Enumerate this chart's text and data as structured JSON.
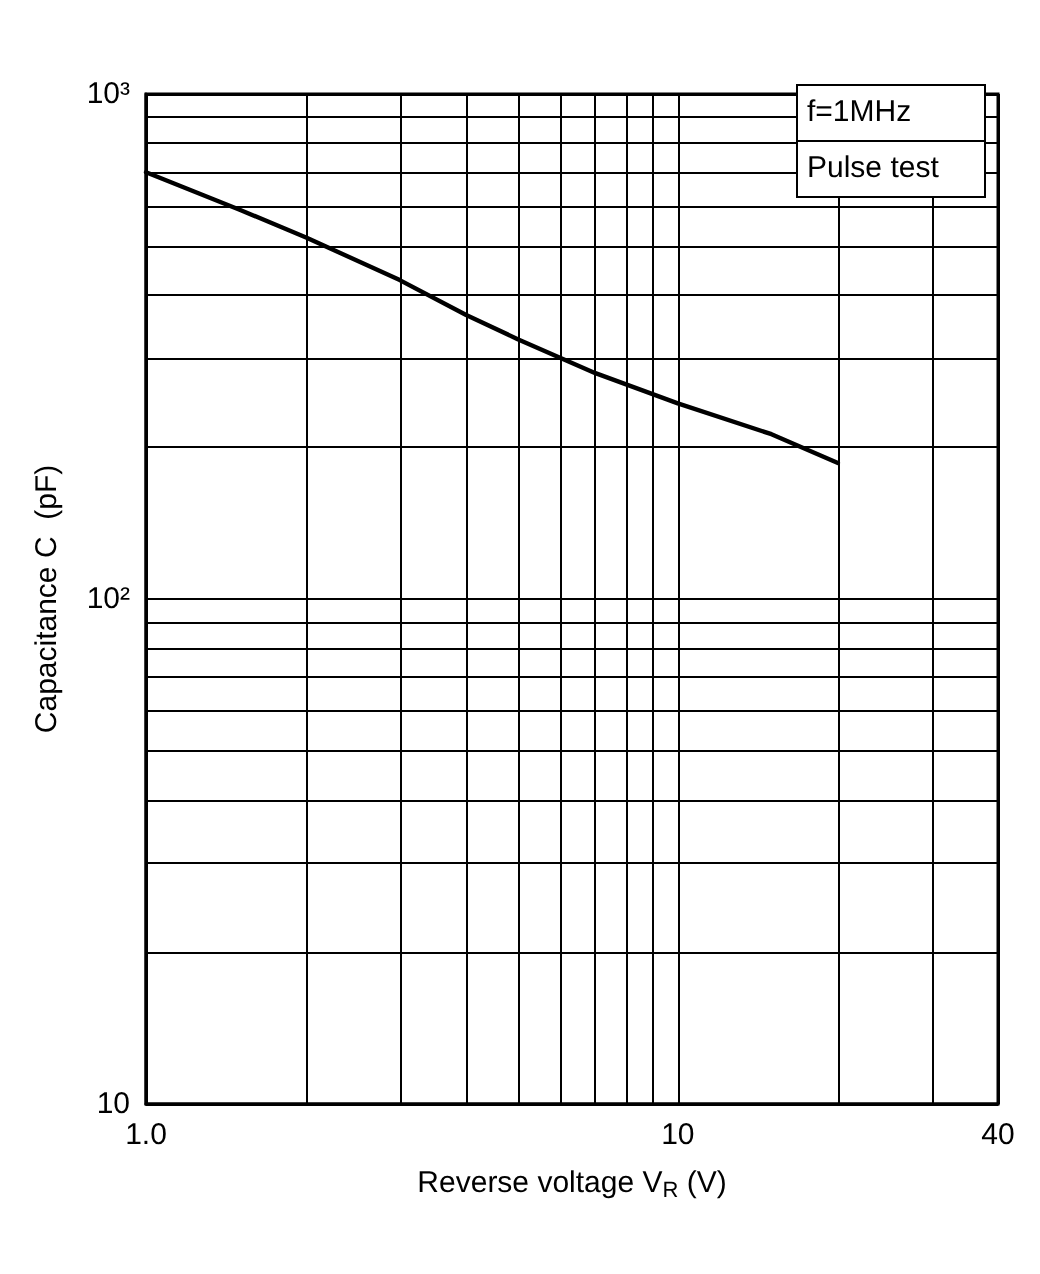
{
  "chart_data": {
    "type": "line",
    "xlabel": "Reverse voltage V$_{R}$ (V)",
    "ylabel": "Capacitance C  (pF)",
    "annotations": [
      "f=1MHz",
      "Pulse test"
    ],
    "x": [
      1,
      1.5,
      2,
      3,
      4,
      5,
      7,
      10,
      15,
      20
    ],
    "series": [
      {
        "color": "#000000",
        "values": [
          700,
          590,
          520,
          428,
          365,
          327,
          280,
          244,
          212,
          186
        ]
      }
    ],
    "log": "xy",
    "grid": true,
    "marker": "none",
    "line_style": "solid",
    "xlim": [
      1,
      40
    ],
    "ylim": [
      10,
      1000
    ],
    "xticks": [
      {
        "value": 1,
        "label": "1.0"
      },
      {
        "value": 2,
        "label": null
      },
      {
        "value": 3,
        "label": null
      },
      {
        "value": 4,
        "label": null
      },
      {
        "value": 5,
        "label": null
      },
      {
        "value": 6,
        "label": null
      },
      {
        "value": 7,
        "label": null
      },
      {
        "value": 8,
        "label": null
      },
      {
        "value": 9,
        "label": null
      },
      10,
      {
        "value": 20,
        "label": null
      },
      {
        "value": 30,
        "label": null
      },
      40
    ],
    "yticks": [
      10,
      {
        "value": 20,
        "label": null
      },
      {
        "value": 30,
        "label": null
      },
      {
        "value": 40,
        "label": null
      },
      {
        "value": 50,
        "label": null
      },
      {
        "value": 60,
        "label": null
      },
      {
        "value": 70,
        "label": null
      },
      {
        "value": 80,
        "label": null
      },
      {
        "value": 90,
        "label": null
      },
      {
        "value": 100,
        "label": "10²"
      },
      {
        "value": 200,
        "label": null
      },
      {
        "value": 300,
        "label": null
      },
      {
        "value": 400,
        "label": null
      },
      {
        "value": 500,
        "label": null
      },
      {
        "value": 600,
        "label": null
      },
      {
        "value": 700,
        "label": null
      },
      {
        "value": 800,
        "label": null
      },
      {
        "value": 900,
        "label": null
      },
      {
        "value": 1000,
        "label": "10³"
      }
    ]
  }
}
